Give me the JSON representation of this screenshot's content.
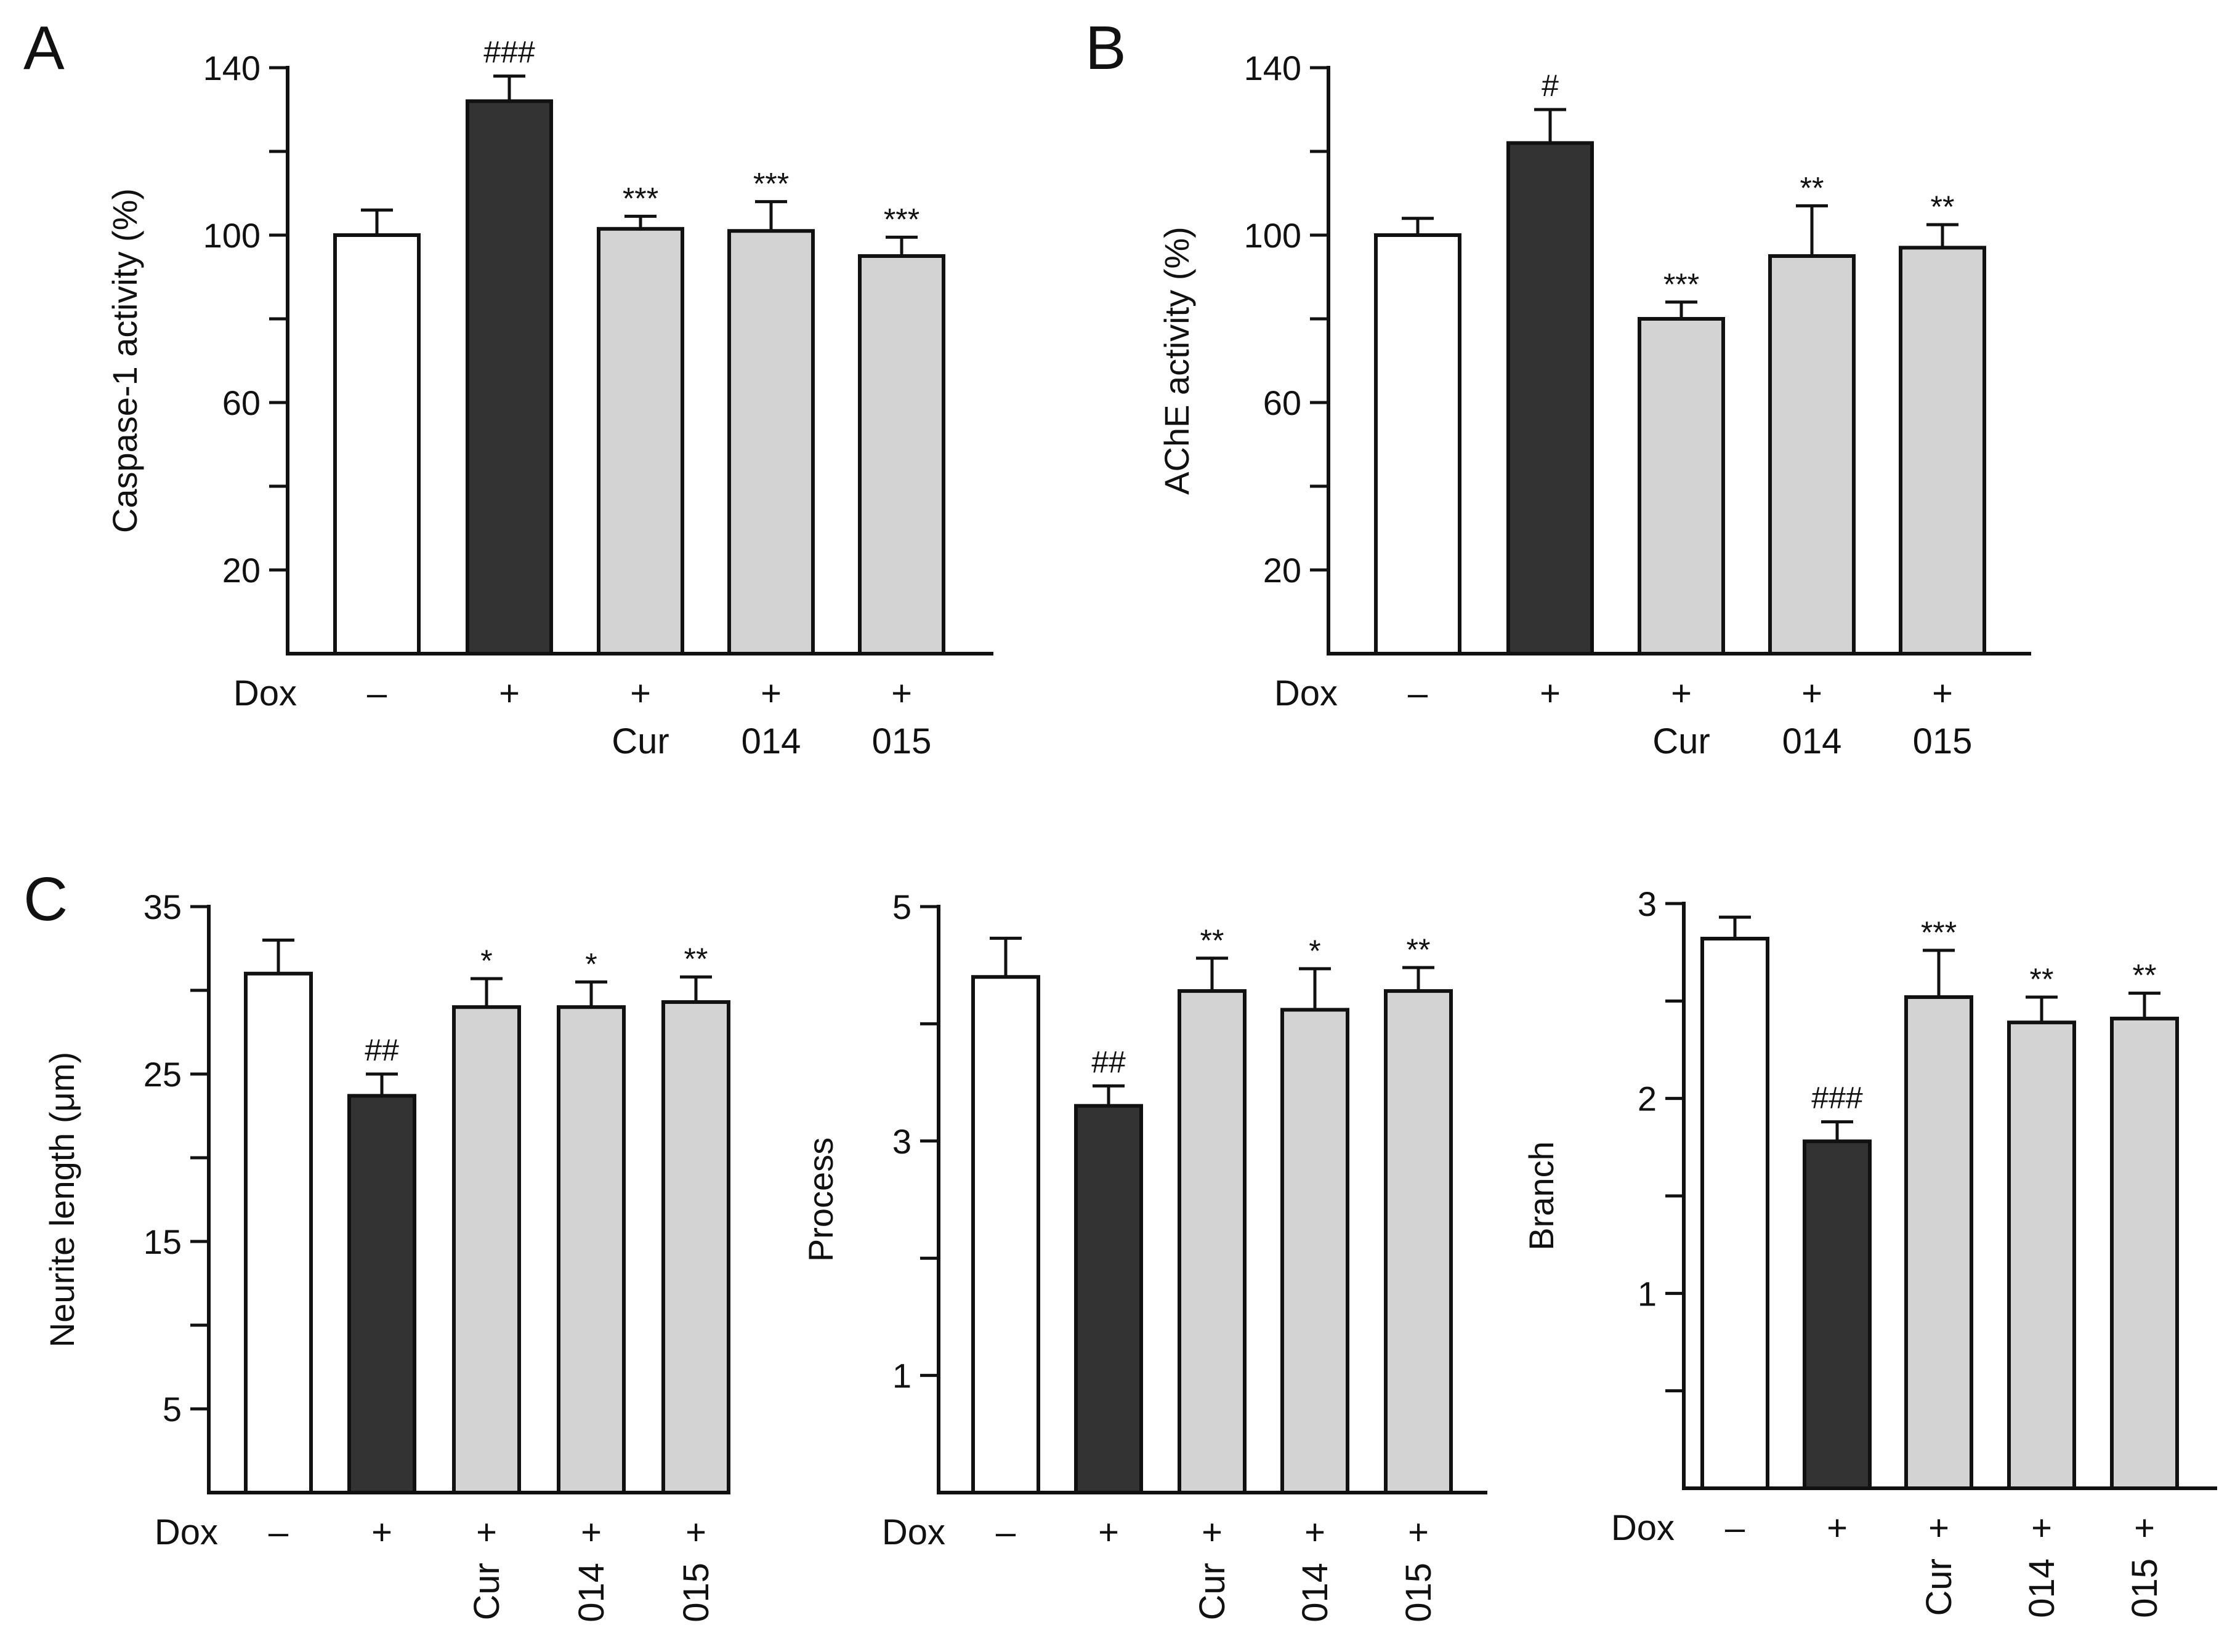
{
  "colors": {
    "control": "#ffffff",
    "dox": "#333333",
    "treated": "#d3d3d3",
    "line": "#111111"
  },
  "chart_data": [
    {
      "panel": "A",
      "type": "bar",
      "ylabel": "Caspase-1 activity (%)",
      "ylim": [
        0,
        140
      ],
      "yticks": [
        20,
        60,
        100,
        140
      ],
      "minor_ticks": [
        40,
        80,
        120
      ],
      "row_label": "Dox",
      "dox": [
        "–",
        "+",
        "+",
        "+",
        "+"
      ],
      "treatments": [
        "",
        "",
        "Cur",
        "014",
        "015"
      ],
      "values": [
        100,
        132,
        101.5,
        101,
        95
      ],
      "errors": [
        6,
        6,
        3,
        7,
        4.5
      ],
      "fills": [
        "control",
        "dox",
        "treated",
        "treated",
        "treated"
      ],
      "significance": [
        "",
        "###",
        "***",
        "***",
        "***"
      ]
    },
    {
      "panel": "B",
      "type": "bar",
      "ylabel": "AChE activity (%)",
      "ylim": [
        0,
        140
      ],
      "yticks": [
        20,
        60,
        100,
        140
      ],
      "minor_ticks": [
        40,
        80,
        120
      ],
      "row_label": "Dox",
      "dox": [
        "–",
        "+",
        "+",
        "+",
        "+"
      ],
      "treatments": [
        "",
        "",
        "Cur",
        "014",
        "015"
      ],
      "values": [
        100,
        122,
        80,
        95,
        97
      ],
      "errors": [
        4,
        8,
        4,
        12,
        5.5
      ],
      "fills": [
        "control",
        "dox",
        "treated",
        "treated",
        "treated"
      ],
      "significance": [
        "",
        "#",
        "***",
        "**",
        "**"
      ]
    },
    {
      "panel": "C",
      "type": "bar",
      "ylabel": "Neurite length (μm)",
      "ylim": [
        0,
        35
      ],
      "yticks": [
        5,
        15,
        25,
        35
      ],
      "minor_ticks": [
        10,
        20,
        30
      ],
      "row_label": "Dox",
      "dox": [
        "–",
        "+",
        "+",
        "+",
        "+"
      ],
      "treatments": [
        "",
        "",
        "Cur",
        "014",
        "015"
      ],
      "values": [
        31,
        23.7,
        29,
        29,
        29.3
      ],
      "errors": [
        2,
        1.3,
        1.7,
        1.5,
        1.5
      ],
      "fills": [
        "control",
        "dox",
        "treated",
        "treated",
        "treated"
      ],
      "significance": [
        "",
        "##",
        "*",
        "*",
        "**"
      ]
    },
    {
      "panel": "",
      "type": "bar",
      "ylabel": "Process",
      "ylim": [
        0,
        5
      ],
      "yticks": [
        1,
        3,
        5
      ],
      "minor_ticks": [
        2,
        4
      ],
      "row_label": "Dox",
      "dox": [
        "–",
        "+",
        "+",
        "+",
        "+"
      ],
      "treatments": [
        "",
        "",
        "Cur",
        "014",
        "015"
      ],
      "values": [
        4.4,
        3.3,
        4.28,
        4.12,
        4.28
      ],
      "errors": [
        0.33,
        0.17,
        0.28,
        0.35,
        0.2
      ],
      "fills": [
        "control",
        "dox",
        "treated",
        "treated",
        "treated"
      ],
      "significance": [
        "",
        "##",
        "**",
        "*",
        "**"
      ]
    },
    {
      "panel": "",
      "type": "bar",
      "ylabel": "Branch",
      "ylim": [
        0,
        3
      ],
      "yticks": [
        1,
        2,
        3
      ],
      "minor_ticks": [
        0.5,
        1.5,
        2.5
      ],
      "row_label": "Dox",
      "dox": [
        "–",
        "+",
        "+",
        "+",
        "+"
      ],
      "treatments": [
        "",
        "",
        "Cur",
        "014",
        "015"
      ],
      "values": [
        2.82,
        1.78,
        2.52,
        2.39,
        2.41
      ],
      "errors": [
        0.11,
        0.1,
        0.24,
        0.13,
        0.13
      ],
      "fills": [
        "control",
        "dox",
        "treated",
        "treated",
        "treated"
      ],
      "significance": [
        "",
        "###",
        "***",
        "**",
        "**"
      ]
    }
  ]
}
